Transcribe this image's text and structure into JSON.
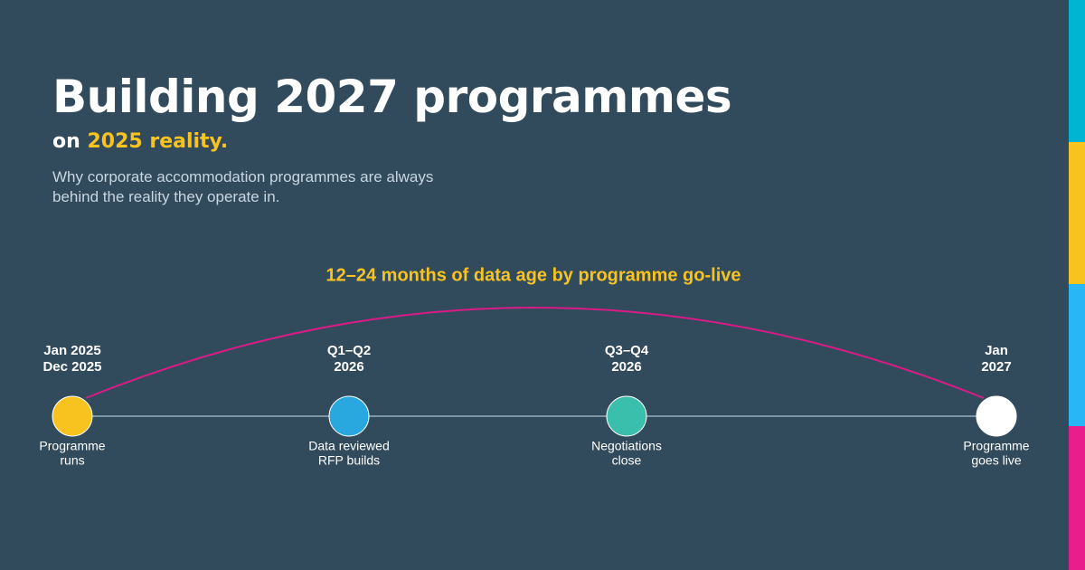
{
  "header": {
    "title": "Building 2027 programmes",
    "subtitle_lead": "on",
    "subtitle_highlight": "2025 reality.",
    "description": "Why corporate accommodation programmes are always behind the reality they operate in."
  },
  "timeline": {
    "arc_label": "12–24 months of data age by programme go-live",
    "nodes": [
      {
        "top": [
          "Jan 2025",
          "Dec 2025"
        ],
        "bottom": [
          "Programme",
          "runs"
        ],
        "color": "#f9c31f"
      },
      {
        "top": [
          "Q1–Q2",
          "2026"
        ],
        "bottom": [
          "Data reviewed",
          "RFP builds"
        ],
        "color": "#29a8e0"
      },
      {
        "top": [
          "Q3–Q4",
          "2026"
        ],
        "bottom": [
          "Negotiations",
          "close"
        ],
        "color": "#3bbfad"
      },
      {
        "top": [
          "Jan",
          "2027"
        ],
        "bottom": [
          "Programme",
          "goes live"
        ],
        "color": "#ffffff"
      }
    ]
  }
}
